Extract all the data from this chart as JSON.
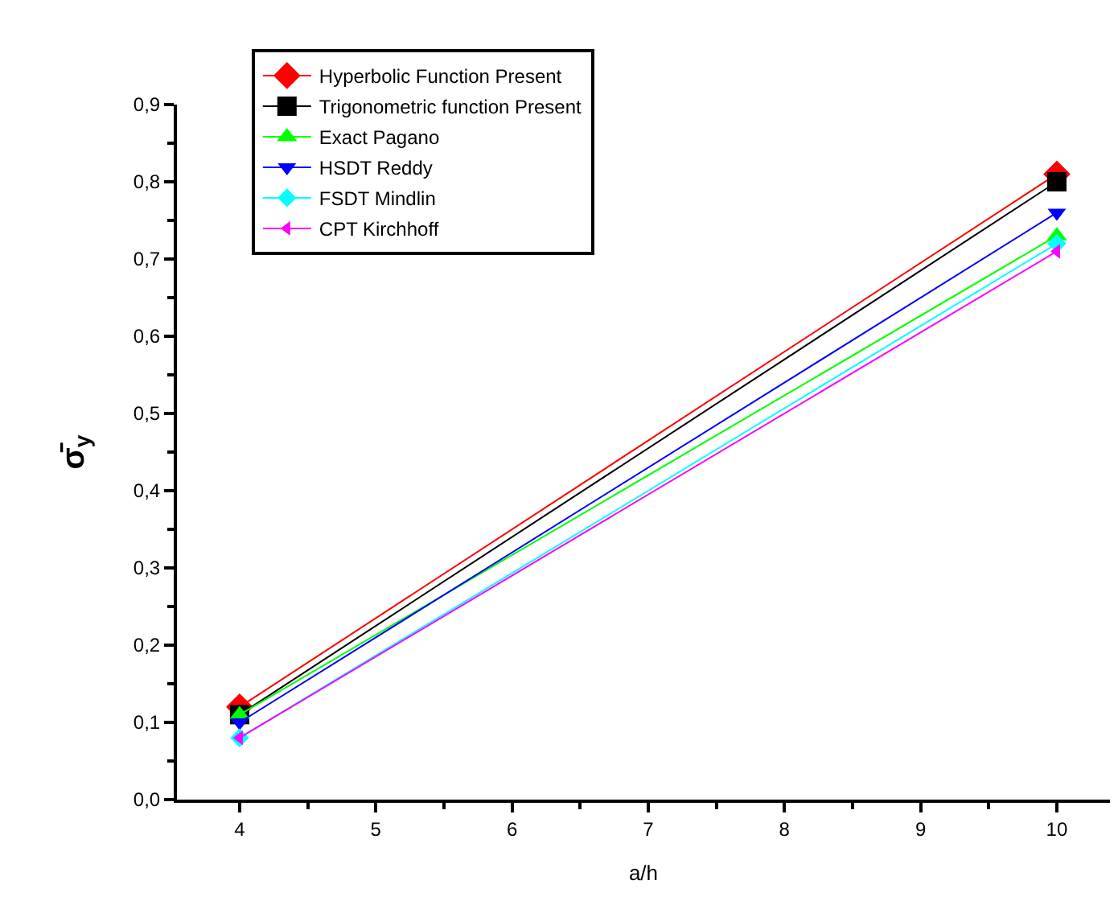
{
  "chart_data": {
    "type": "line",
    "xlabel": "a/h",
    "ylabel": "σ̄$_{y}$",
    "x": [
      4,
      10
    ],
    "series": [
      {
        "name": "Hyperbolic Function Present",
        "color": "#ff0000",
        "marker": "diamond",
        "values": [
          0.12,
          0.81
        ]
      },
      {
        "name": "Trigonometric function Present",
        "color": "#000000",
        "marker": "square",
        "values": [
          0.11,
          0.8
        ]
      },
      {
        "name": "Exact Pagano",
        "color": "#00ff00",
        "marker": "triangle",
        "values": [
          0.11,
          0.73
        ]
      },
      {
        "name": "HSDT Reddy",
        "color": "#0000ff",
        "marker": "triangle-down",
        "values": [
          0.1,
          0.76
        ]
      },
      {
        "name": "FSDT Mindlin",
        "color": "#00ffff",
        "marker": "diamond",
        "values": [
          0.08,
          0.72
        ]
      },
      {
        "name": "CPT Kirchhoff",
        "color": "#ff00ff",
        "marker": "triangle-left",
        "values": [
          0.08,
          0.71
        ]
      }
    ],
    "xlim": [
      3.54,
      10.39
    ],
    "xticks": [
      4,
      5,
      6,
      7,
      8,
      9,
      10
    ],
    "ylim": [
      0,
      0.9
    ],
    "yticks": [
      {
        "value": 0,
        "label": "0,0"
      },
      {
        "value": 0.1,
        "label": "0,1"
      },
      {
        "value": 0.2,
        "label": "0,2"
      },
      {
        "value": 0.3,
        "label": "0,3"
      },
      {
        "value": 0.4,
        "label": "0,4"
      },
      {
        "value": 0.5,
        "label": "0,5"
      },
      {
        "value": 0.6,
        "label": "0,6"
      },
      {
        "value": 0.7,
        "label": "0,7"
      },
      {
        "value": 0.8,
        "label": "0,8"
      },
      {
        "value": 0.9,
        "label": "0,9"
      }
    ],
    "grid": false,
    "legend": "top",
    "line_style": "solid"
  }
}
